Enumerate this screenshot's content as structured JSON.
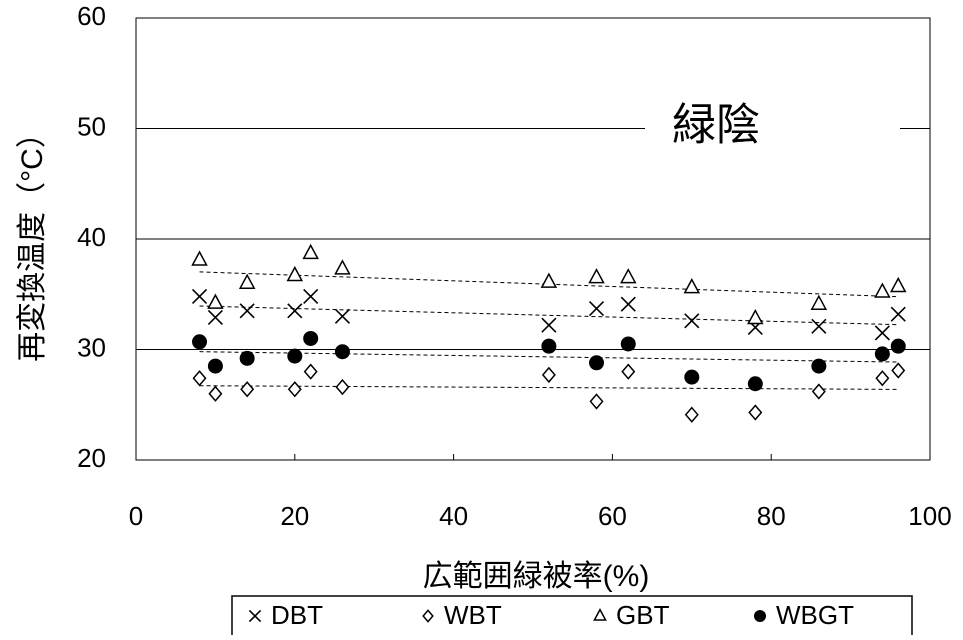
{
  "chart_data": {
    "type": "scatter",
    "annotation": "緑陰",
    "x_label": "広範囲緑被率(%)",
    "y_label": "再変換温度（°C）",
    "x": [
      8,
      10,
      14,
      20,
      22,
      26,
      52,
      58,
      62,
      70,
      78,
      86,
      94,
      96
    ],
    "series": [
      {
        "name": "DBT",
        "marker": "x",
        "color": "#000000",
        "values": [
          34.8,
          32.9,
          33.5,
          33.5,
          34.8,
          33.0,
          32.2,
          33.7,
          34.1,
          32.6,
          32.0,
          32.1,
          31.5,
          33.2
        ]
      },
      {
        "name": "WBT",
        "marker": "diamond",
        "color": "#000000",
        "values": [
          27.4,
          26.0,
          26.4,
          26.4,
          28.0,
          26.6,
          27.7,
          25.3,
          28.0,
          24.1,
          24.3,
          26.2,
          27.4,
          28.1
        ]
      },
      {
        "name": "GBT",
        "marker": "triangle",
        "color": "#000000",
        "values": [
          38.1,
          34.2,
          36.0,
          36.7,
          38.7,
          37.3,
          36.1,
          36.5,
          36.5,
          35.6,
          32.8,
          34.1,
          35.2,
          35.7
        ]
      },
      {
        "name": "WBGT",
        "marker": "circle",
        "color": "#000000",
        "values": [
          30.7,
          28.5,
          29.2,
          29.4,
          31.0,
          29.8,
          30.3,
          28.8,
          30.5,
          27.5,
          26.9,
          28.5,
          29.6,
          30.3
        ]
      }
    ],
    "xlim": [
      0,
      100
    ],
    "xticks": [
      0,
      20,
      40,
      60,
      80,
      100
    ],
    "ylim": [
      20,
      60
    ],
    "yticks": [
      20,
      30,
      40,
      50,
      60
    ],
    "grid": true,
    "trendlines": true,
    "legend": "bottom"
  }
}
